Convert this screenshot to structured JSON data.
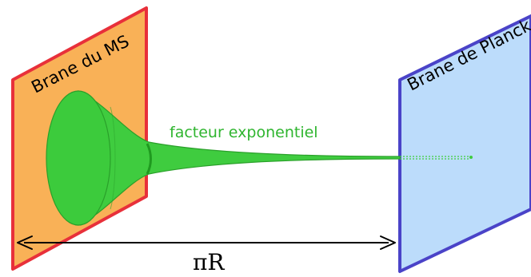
{
  "labels": {
    "sm_brane": "Brane du MS",
    "planck_brane": "Brane de Planck",
    "warp_factor": "facteur exponentiel",
    "distance": "πR"
  },
  "colors": {
    "sm_brane_fill": "#f9b157",
    "sm_brane_edge": "#e8303a",
    "planck_brane_fill": "#bcdcfb",
    "planck_brane_edge": "#4a43c8",
    "warp_fill": "#3fcc3f",
    "warp_edge": "#2aa02a",
    "warp_text": "#2fb52f",
    "arrow": "#000000"
  }
}
